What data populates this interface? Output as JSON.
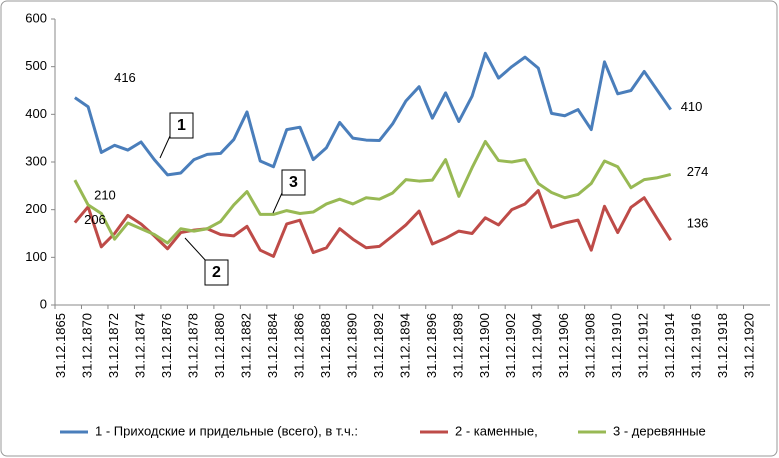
{
  "chart_data": {
    "type": "line",
    "categories": [
      "31.12.1865",
      null,
      "31.12.1870",
      null,
      "31.12.1872",
      null,
      "31.12.1874",
      null,
      "31.12.1876",
      null,
      "31.12.1878",
      null,
      "31.12.1880",
      null,
      "31.12.1882",
      null,
      "31.12.1884",
      null,
      "31.12.1886",
      null,
      "31.12.1888",
      null,
      "31.12.1890",
      null,
      "31.12.1892",
      null,
      "31.12.1894",
      null,
      "31.12.1896",
      null,
      "31.12.1898",
      null,
      "31.12.1900",
      null,
      "31.12.1902",
      null,
      "31.12.1904",
      null,
      "31.12.1906",
      null,
      "31.12.1908",
      null,
      "31.12.1910",
      null,
      "31.12.1912",
      null,
      "31.12.1914",
      null,
      "31.12.1916",
      null,
      "31.12.1918",
      null,
      "31.12.1920",
      null
    ],
    "series": [
      {
        "name": "1 - Приходские и придельные (всего), в т.ч.:",
        "color": "#4a7ebb",
        "values": [
          null,
          435,
          416,
          320,
          335,
          325,
          342,
          305,
          273,
          277,
          305,
          316,
          318,
          347,
          405,
          302,
          290,
          368,
          373,
          305,
          330,
          383,
          350,
          346,
          345,
          380,
          428,
          458,
          392,
          445,
          385,
          438,
          528,
          476,
          500,
          520,
          497,
          402,
          397,
          410,
          368,
          510,
          443,
          450,
          490,
          450,
          410,
          null,
          null,
          null,
          null,
          null,
          null,
          null
        ]
      },
      {
        "name": "2 - каменные,",
        "color": "#be4b48",
        "values": [
          null,
          173,
          206,
          122,
          150,
          188,
          170,
          145,
          118,
          152,
          157,
          160,
          148,
          145,
          165,
          115,
          102,
          170,
          178,
          110,
          120,
          160,
          138,
          120,
          123,
          145,
          168,
          197,
          128,
          140,
          155,
          150,
          183,
          168,
          200,
          212,
          240,
          163,
          172,
          178,
          115,
          207,
          152,
          205,
          225,
          180,
          136,
          null,
          null,
          null,
          null,
          null,
          null,
          null
        ]
      },
      {
        "name": "3 - деревянные",
        "color": "#98b954",
        "values": [
          null,
          262,
          210,
          192,
          138,
          172,
          160,
          148,
          130,
          160,
          155,
          160,
          175,
          210,
          238,
          190,
          190,
          198,
          192,
          195,
          212,
          222,
          212,
          225,
          222,
          235,
          263,
          260,
          262,
          305,
          228,
          288,
          343,
          303,
          300,
          305,
          255,
          236,
          225,
          232,
          255,
          302,
          290,
          246,
          263,
          267,
          274,
          null,
          null,
          null,
          null,
          null,
          null,
          null
        ]
      }
    ],
    "annotations": [
      "1",
      "2",
      "3"
    ],
    "ylim": [
      0,
      600
    ],
    "yticks": [
      0,
      100,
      200,
      300,
      400,
      500,
      600
    ],
    "grid": false,
    "legend": "bottom"
  }
}
